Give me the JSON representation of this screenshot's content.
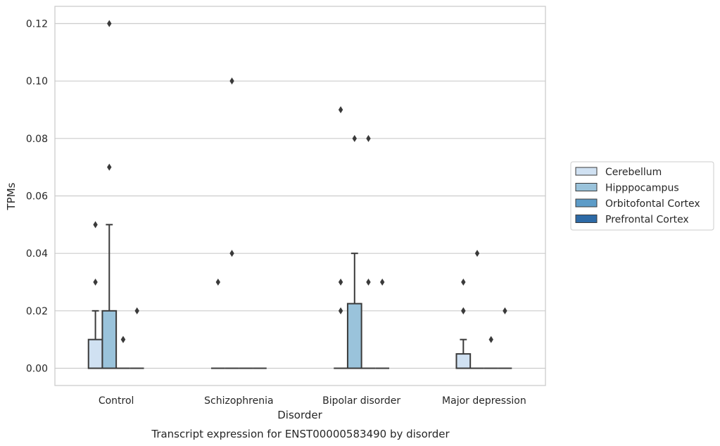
{
  "chart_data": {
    "type": "box",
    "title": "",
    "caption": "Transcript expression for ENST00000583490 by disorder",
    "xlabel": "Disorder",
    "ylabel": "TPMs",
    "ylim": [
      -0.006,
      0.126
    ],
    "yticks": [
      "0.00",
      "0.02",
      "0.04",
      "0.06",
      "0.08",
      "0.10",
      "0.12"
    ],
    "ytick_values": [
      0,
      0.02,
      0.04,
      0.06,
      0.08,
      0.1,
      0.12
    ],
    "grid": true,
    "legend_position": "right",
    "categories": [
      "Control",
      "Schizophrenia",
      "Bipolar disorder",
      "Major depression"
    ],
    "series": [
      {
        "name": "Cerebellum",
        "color": "#d0e1f2",
        "boxes": [
          {
            "q1": 0,
            "median": 0,
            "q3": 0.01,
            "whisker_low": 0,
            "whisker_high": 0.02,
            "outliers": [
              0.03,
              0.05
            ]
          },
          {
            "q1": 0,
            "median": 0,
            "q3": 0,
            "whisker_low": 0,
            "whisker_high": 0,
            "outliers": [
              0.03
            ]
          },
          {
            "q1": 0,
            "median": 0,
            "q3": 0,
            "whisker_low": 0,
            "whisker_high": 0,
            "outliers": [
              0.02,
              0.03,
              0.09
            ]
          },
          {
            "q1": 0,
            "median": 0,
            "q3": 0.005,
            "whisker_low": 0,
            "whisker_high": 0.01,
            "outliers": [
              0.02,
              0.02,
              0.03
            ]
          }
        ]
      },
      {
        "name": "Hipppocampus",
        "color": "#9ac3db",
        "boxes": [
          {
            "q1": 0,
            "median": 0,
            "q3": 0.02,
            "whisker_low": 0,
            "whisker_high": 0.05,
            "outliers": [
              0.07,
              0.12
            ]
          },
          {
            "q1": 0,
            "median": 0,
            "q3": 0,
            "whisker_low": 0,
            "whisker_high": 0,
            "outliers": [
              0.04,
              0.1
            ]
          },
          {
            "q1": 0,
            "median": 0,
            "q3": 0.0225,
            "whisker_low": 0,
            "whisker_high": 0.04,
            "outliers": [
              0.08
            ]
          },
          {
            "q1": 0,
            "median": 0,
            "q3": 0,
            "whisker_low": 0,
            "whisker_high": 0,
            "outliers": [
              0.04
            ]
          }
        ]
      },
      {
        "name": "Orbitofontal Cortex",
        "color": "#5d9cc8",
        "boxes": [
          {
            "q1": 0,
            "median": 0,
            "q3": 0,
            "whisker_low": 0,
            "whisker_high": 0,
            "outliers": [
              0.01,
              0.01
            ]
          },
          {
            "q1": 0,
            "median": 0,
            "q3": 0,
            "whisker_low": 0,
            "whisker_high": 0,
            "outliers": []
          },
          {
            "q1": 0,
            "median": 0,
            "q3": 0,
            "whisker_low": 0,
            "whisker_high": 0,
            "outliers": [
              0.03,
              0.08
            ]
          },
          {
            "q1": 0,
            "median": 0,
            "q3": 0,
            "whisker_low": 0,
            "whisker_high": 0,
            "outliers": [
              0.01
            ]
          }
        ]
      },
      {
        "name": "Prefrontal Cortex",
        "color": "#2d6aa6",
        "boxes": [
          {
            "q1": 0,
            "median": 0,
            "q3": 0,
            "whisker_low": 0,
            "whisker_high": 0,
            "outliers": [
              0.02
            ]
          },
          {
            "q1": 0,
            "median": 0,
            "q3": 0,
            "whisker_low": 0,
            "whisker_high": 0,
            "outliers": []
          },
          {
            "q1": 0,
            "median": 0,
            "q3": 0,
            "whisker_low": 0,
            "whisker_high": 0,
            "outliers": [
              0.03
            ]
          },
          {
            "q1": 0,
            "median": 0,
            "q3": 0,
            "whisker_low": 0,
            "whisker_high": 0,
            "outliers": [
              0.02
            ]
          }
        ]
      }
    ]
  }
}
